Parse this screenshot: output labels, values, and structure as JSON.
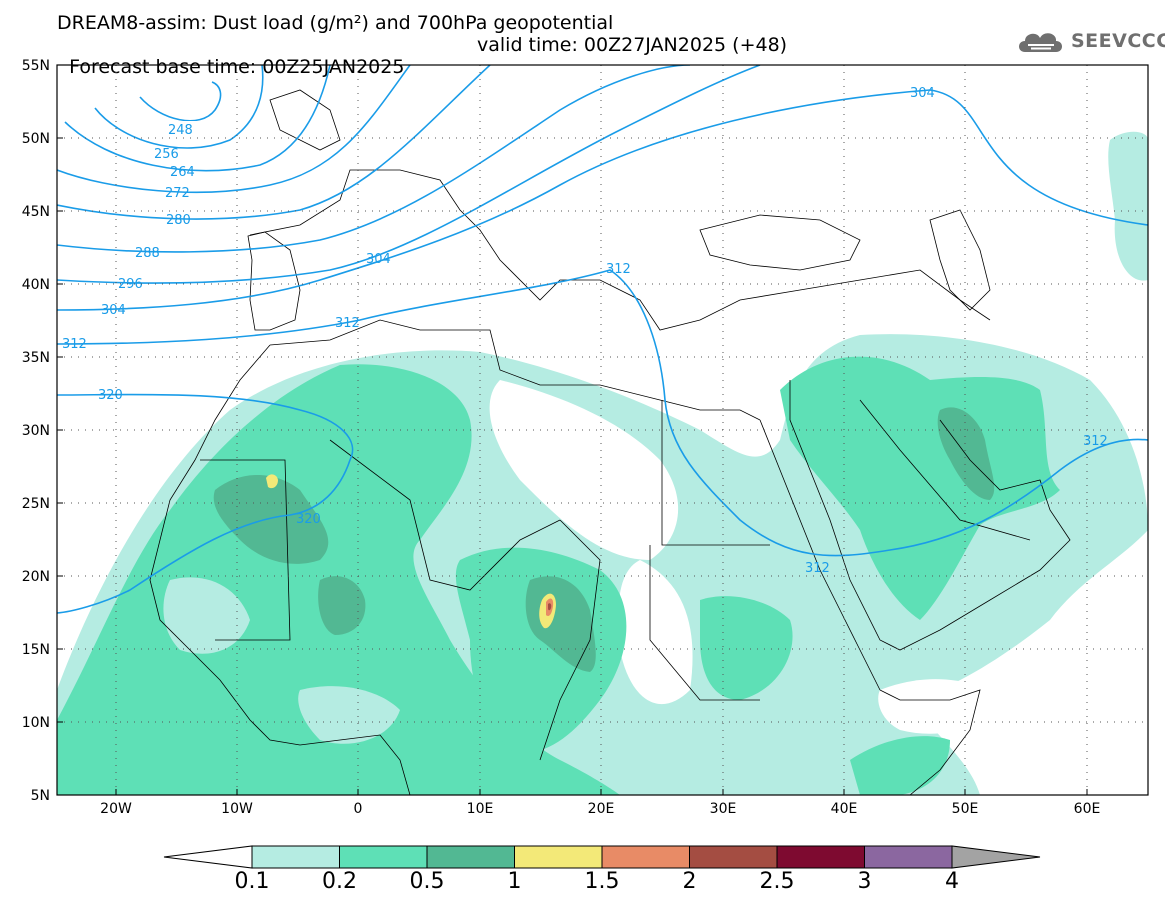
{
  "header": {
    "line1": "DREAM8-assim: Dust load (g/m²) and 700hPa geopotential",
    "line2_left": "Forecast base time: 00Z25JAN2025",
    "line2_right": "valid time: 00Z27JAN2025 (+48)"
  },
  "logo": {
    "text": "SEEVCCC",
    "icon": "cloud-icon"
  },
  "axes": {
    "lat_labels": [
      "55N",
      "50N",
      "45N",
      "40N",
      "35N",
      "30N",
      "25N",
      "20N",
      "15N",
      "10N",
      "5N"
    ],
    "lon_labels": [
      "20W",
      "10W",
      "0",
      "10E",
      "20E",
      "30E",
      "40E",
      "50E",
      "60E"
    ],
    "lat_range": [
      5,
      55
    ],
    "lon_range": [
      -25,
      65
    ]
  },
  "contours": [
    {
      "label": "248"
    },
    {
      "label": "256"
    },
    {
      "label": "264"
    },
    {
      "label": "272"
    },
    {
      "label": "280"
    },
    {
      "label": "288"
    },
    {
      "label": "296"
    },
    {
      "label": "304"
    },
    {
      "label": "312"
    },
    {
      "label": "320"
    }
  ],
  "colorbar": {
    "levels": [
      "0.1",
      "0.2",
      "0.5",
      "1",
      "1.5",
      "2",
      "2.5",
      "3",
      "4"
    ],
    "colors": [
      "#ffffff",
      "#b5ece2",
      "#5ee0b6",
      "#52b893",
      "#f3e978",
      "#e88b66",
      "#a44d42",
      "#7e0a30",
      "#8b67a0",
      "#a3a3a3"
    ]
  },
  "colors": {
    "contour": "#1a9ce8",
    "dust_01": "#b5ece2",
    "dust_02": "#5ee0b6",
    "dust_05": "#52b893",
    "dust_1": "#f3e978",
    "dust_15": "#e88b66",
    "dust_2": "#a44d42"
  }
}
